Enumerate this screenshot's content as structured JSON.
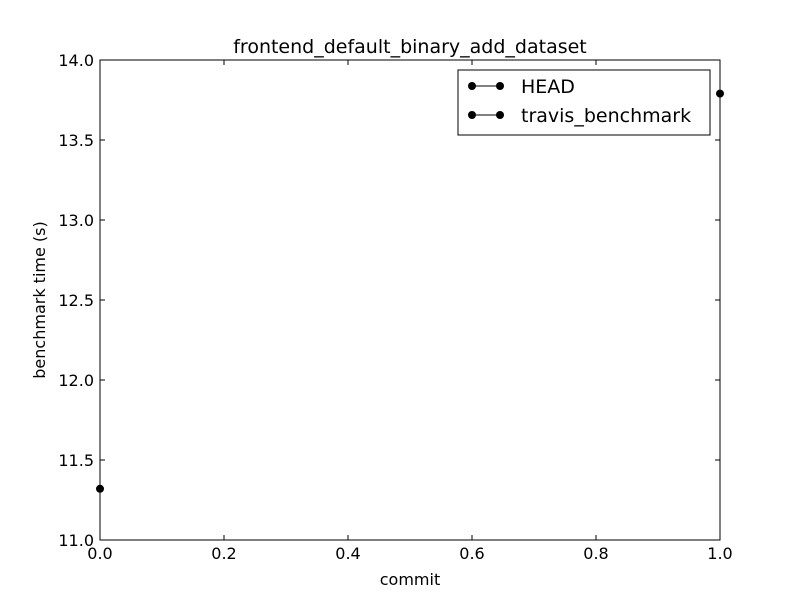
{
  "chart_data": {
    "type": "line",
    "title": "frontend_default_binary_add_dataset",
    "xlabel": "commit",
    "ylabel": "benchmark time (s)",
    "xlim": [
      0.0,
      1.0
    ],
    "ylim": [
      11.0,
      14.0
    ],
    "xticks": [
      "0.0",
      "0.2",
      "0.4",
      "0.6",
      "0.8",
      "1.0"
    ],
    "yticks": [
      "11.0",
      "11.5",
      "12.0",
      "12.5",
      "13.0",
      "13.5",
      "14.0"
    ],
    "grid": false,
    "legend_position": "top-right",
    "series": [
      {
        "name": "HEAD",
        "color": "#000000",
        "marker": "circle",
        "x": [
          0.0
        ],
        "y": [
          11.32
        ]
      },
      {
        "name": "travis_benchmark",
        "color": "#000000",
        "marker": "circle",
        "x": [
          1.0
        ],
        "y": [
          13.79
        ]
      }
    ]
  }
}
